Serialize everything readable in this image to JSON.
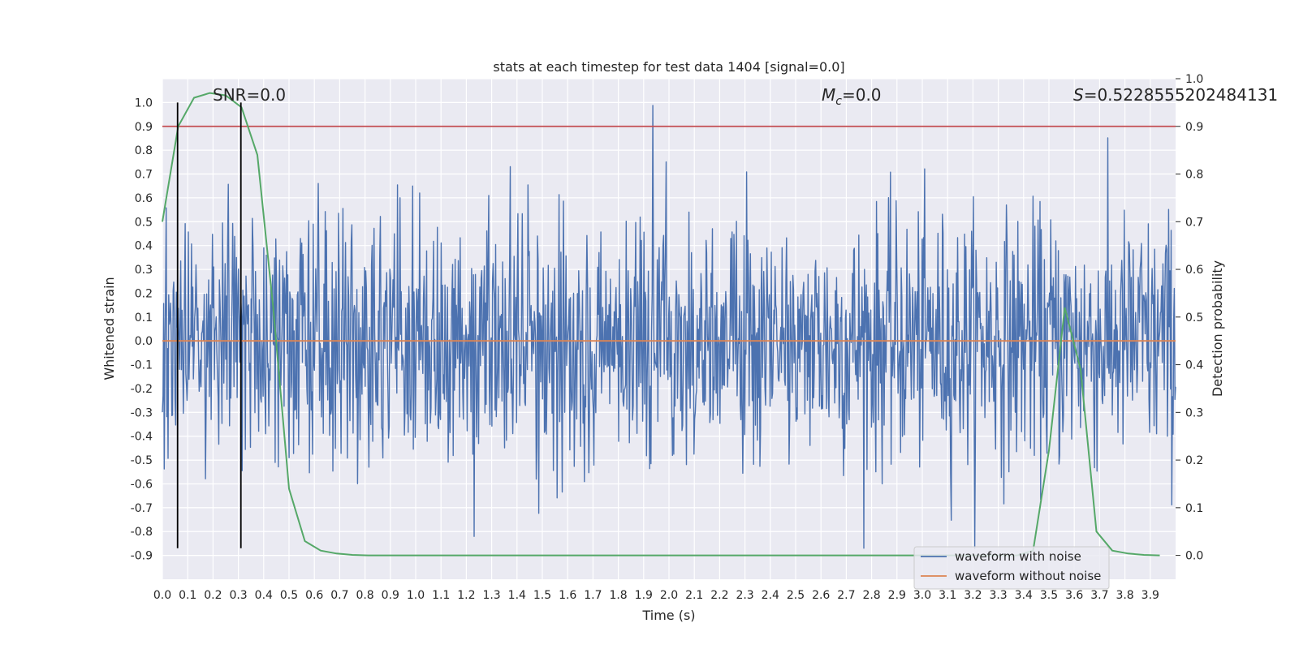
{
  "chart_data": {
    "type": "line",
    "title": "stats at each timestep for test data 1404 [signal=0.0]",
    "xlabel": "Time (s)",
    "ylabel": "Whitened strain",
    "y2label": "Detection probability",
    "xlim": [
      0.0,
      4.0
    ],
    "ylim": [
      -1.0,
      1.1
    ],
    "y2lim": [
      -0.05,
      1.0
    ],
    "grid": true,
    "x_ticks": [
      "0.0",
      "0.1",
      "0.2",
      "0.3",
      "0.4",
      "0.5",
      "0.6",
      "0.7",
      "0.8",
      "0.9",
      "1.0",
      "1.1",
      "1.2",
      "1.3",
      "1.4",
      "1.5",
      "1.6",
      "1.7",
      "1.8",
      "1.9",
      "2.0",
      "2.1",
      "2.2",
      "2.3",
      "2.4",
      "2.5",
      "2.6",
      "2.7",
      "2.8",
      "2.9",
      "3.0",
      "3.1",
      "3.2",
      "3.3",
      "3.4",
      "3.5",
      "3.6",
      "3.7",
      "3.8",
      "3.9"
    ],
    "y_ticks": [
      "-0.9",
      "-0.8",
      "-0.7",
      "-0.6",
      "-0.5",
      "-0.4",
      "-0.3",
      "-0.2",
      "-0.1",
      "0.0",
      "0.1",
      "0.2",
      "0.3",
      "0.4",
      "0.5",
      "0.6",
      "0.7",
      "0.8",
      "0.9",
      "1.0"
    ],
    "y2_ticks": [
      "0.0",
      "0.1",
      "0.2",
      "0.3",
      "0.4",
      "0.5",
      "0.6",
      "0.7",
      "0.8",
      "0.9",
      "1.0"
    ],
    "annotations": {
      "snr": "SNR=0.0",
      "mc_symbol": "M",
      "mc_sub": "c",
      "mc_value": "=0.0",
      "s_symbol": "S",
      "s_value": "=0.5228555202484131"
    },
    "threshold_line": {
      "axis": "y2",
      "value": 0.9,
      "color": "#c44e52"
    },
    "vertical_markers": [
      0.06,
      0.31
    ],
    "series": [
      {
        "name": "waveform with noise",
        "color": "#4c72b0",
        "kind": "noise",
        "approx_std": 0.26,
        "min": -0.87,
        "max": 1.0,
        "n_samples": 1600
      },
      {
        "name": "waveform without noise",
        "color": "#dd8452",
        "kind": "constant",
        "value": 0.0
      },
      {
        "name": "detection probability",
        "color": "#55a868",
        "axis": "y2",
        "x": [
          0.0,
          0.0625,
          0.125,
          0.1875,
          0.25,
          0.3125,
          0.375,
          0.4375,
          0.5,
          0.5625,
          0.625,
          0.6875,
          0.75,
          0.8125,
          1.0,
          2.0,
          3.0,
          3.375,
          3.4375,
          3.5,
          3.5625,
          3.625,
          3.6875,
          3.75,
          3.8125,
          3.875,
          3.9375
        ],
        "y": [
          0.7,
          0.9,
          0.96,
          0.97,
          0.965,
          0.94,
          0.84,
          0.52,
          0.14,
          0.03,
          0.01,
          0.004,
          0.001,
          0.0,
          0.0,
          0.0,
          0.0,
          0.0,
          0.01,
          0.22,
          0.52,
          0.39,
          0.05,
          0.01,
          0.004,
          0.001,
          0.0
        ]
      }
    ],
    "legend": {
      "position": "bottom-right",
      "entries": [
        {
          "label": "waveform with noise",
          "color": "#4c72b0"
        },
        {
          "label": "waveform without noise",
          "color": "#dd8452"
        }
      ]
    }
  }
}
